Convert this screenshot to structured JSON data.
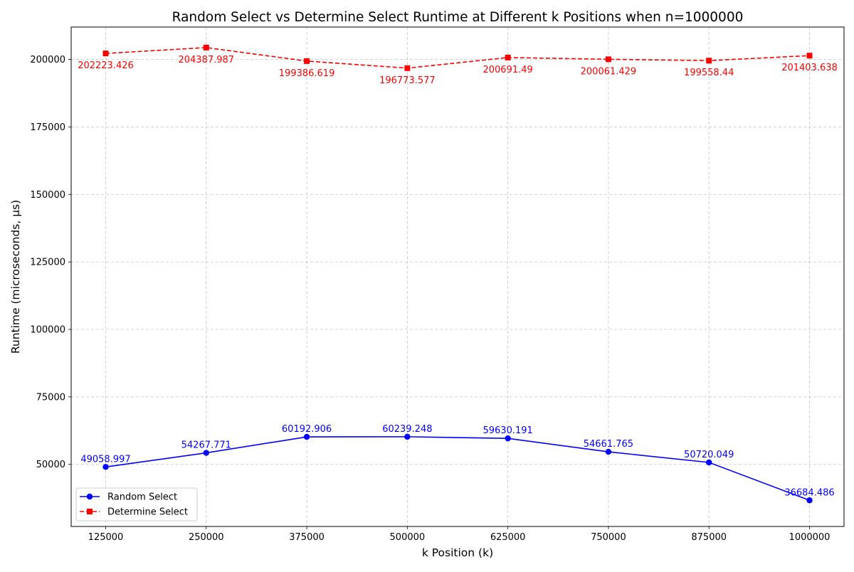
{
  "chart_data": {
    "type": "line",
    "title": "Random Select vs Determine Select Runtime at Different k Positions when n=1000000",
    "xlabel": "k Position (k)",
    "ylabel": "Runtime (microseconds, μs)",
    "x": [
      125000,
      250000,
      375000,
      500000,
      625000,
      750000,
      875000,
      1000000
    ],
    "x_tick_labels": [
      "125000",
      "250000",
      "375000",
      "500000",
      "625000",
      "750000",
      "875000",
      "1000000"
    ],
    "ylim": [
      27000,
      212000
    ],
    "y_ticks": [
      50000,
      75000,
      100000,
      125000,
      150000,
      175000,
      200000
    ],
    "y_tick_labels": [
      "50000",
      "75000",
      "100000",
      "125000",
      "150000",
      "175000",
      "200000"
    ],
    "grid": true,
    "legend_position": "lower-left",
    "series": [
      {
        "name": "Random Select",
        "color": "#0000ff",
        "marker": "circle",
        "line_style": "solid",
        "label_placement": "above",
        "values": [
          49058.997,
          54267.771,
          60192.906,
          60239.248,
          59630.191,
          54661.765,
          50720.049,
          36684.486
        ],
        "value_labels": [
          "49058.997",
          "54267.771",
          "60192.906",
          "60239.248",
          "59630.191",
          "54661.765",
          "50720.049",
          "36684.486"
        ]
      },
      {
        "name": "Determine Select",
        "color": "#ff0000",
        "marker": "square",
        "line_style": "dashed",
        "label_placement": "below",
        "values": [
          202223.426,
          204387.987,
          199386.619,
          196773.577,
          200691.49,
          200061.429,
          199558.44,
          201403.638
        ],
        "value_labels": [
          "202223.426",
          "204387.987",
          "199386.619",
          "196773.577",
          "200691.49",
          "200061.429",
          "199558.44",
          "201403.638"
        ]
      }
    ]
  }
}
